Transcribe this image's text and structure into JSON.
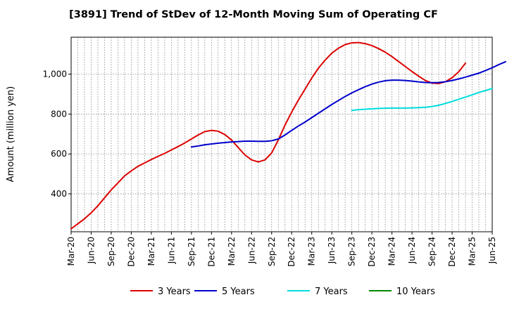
{
  "chart_data": {
    "type": "line",
    "title": "[3891]  Trend of StDev of 12-Month Moving Sum of Operating CF",
    "xlabel": "",
    "ylabel": "Amount (million yen)",
    "ylim": [
      210,
      1185
    ],
    "yticks": [
      400,
      600,
      800,
      1000
    ],
    "ytick_labels": [
      "400",
      "600",
      "800",
      "1,000"
    ],
    "grid": true,
    "legend_position": "bottom",
    "x_labels": [
      "Mar-20",
      "Jun-20",
      "Sep-20",
      "Dec-20",
      "Mar-21",
      "Jun-21",
      "Sep-21",
      "Dec-21",
      "Mar-22",
      "Jun-22",
      "Sep-22",
      "Dec-22",
      "Mar-23",
      "Jun-23",
      "Sep-23",
      "Dec-23",
      "Mar-24",
      "Jun-24",
      "Sep-24",
      "Dec-24",
      "Mar-25",
      "Jun-25"
    ],
    "series": [
      {
        "name": "3 Years",
        "color": "#dd0000",
        "start_month_index": 0,
        "values": [
          225,
          250,
          275,
          305,
          340,
          380,
          420,
          455,
          490,
          515,
          538,
          555,
          572,
          588,
          603,
          620,
          637,
          655,
          675,
          695,
          712,
          718,
          714,
          697,
          670,
          632,
          595,
          570,
          560,
          570,
          605,
          670,
          745,
          810,
          870,
          925,
          980,
          1030,
          1070,
          1105,
          1130,
          1148,
          1157,
          1158,
          1153,
          1143,
          1128,
          1110,
          1088,
          1063,
          1038,
          1013,
          990,
          968,
          955,
          953,
          962,
          982,
          1012,
          1055
        ]
      },
      {
        "name": "5 Years",
        "color": "#0000cc",
        "start_month_index": 18,
        "values": [
          635,
          640,
          646,
          650,
          654,
          657,
          660,
          662,
          664,
          664,
          663,
          663,
          666,
          675,
          695,
          718,
          740,
          760,
          782,
          804,
          826,
          848,
          868,
          888,
          906,
          922,
          937,
          950,
          960,
          967,
          970,
          970,
          968,
          965,
          961,
          958,
          957,
          958,
          962,
          968,
          976,
          985,
          995,
          1005,
          1018,
          1032,
          1048,
          1062
        ]
      },
      {
        "name": "7 Years",
        "color": "#00dddd",
        "start_month_index": 42,
        "values": [
          818,
          822,
          824,
          826,
          828,
          829,
          830,
          830,
          830,
          831,
          832,
          834,
          838,
          844,
          853,
          863,
          874,
          885,
          896,
          908,
          918,
          928
        ]
      },
      {
        "name": "10 Years",
        "color": "#008800",
        "start_month_index": 0,
        "values": []
      }
    ]
  }
}
